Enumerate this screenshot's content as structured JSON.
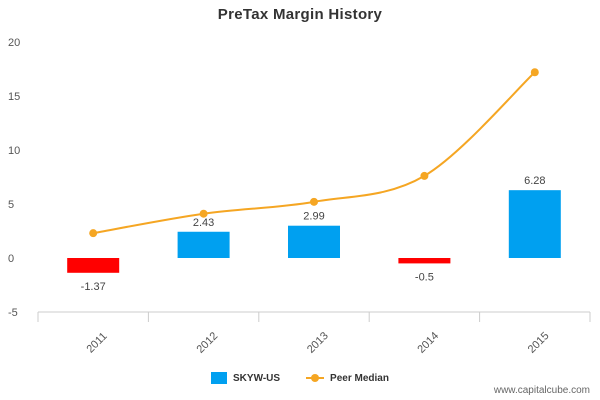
{
  "chart_data": {
    "type": "bar",
    "title": "PreTax Margin History",
    "categories": [
      "2011",
      "2012",
      "2013",
      "2014",
      "2015"
    ],
    "series": [
      {
        "name": "SKYW-US",
        "type": "bar",
        "values": [
          -1.37,
          2.43,
          2.99,
          -0.5,
          6.28
        ],
        "data_labels": [
          "-1.37",
          "2.43",
          "2.99",
          "-0.5",
          "6.28"
        ],
        "color_positive": "#00a0f0",
        "color_negative": "#ff0000"
      },
      {
        "name": "Peer Median",
        "type": "line",
        "values": [
          2.3,
          4.1,
          5.2,
          7.6,
          17.2
        ],
        "color": "#f5a623"
      }
    ],
    "xlabel": "",
    "ylabel": "",
    "ylim": [
      -5,
      20
    ],
    "yticks": [
      -5,
      0,
      5,
      10,
      15,
      20
    ],
    "grid": false,
    "legend": "bottom-center"
  },
  "legend": {
    "bar_label": "SKYW-US",
    "line_label": "Peer Median"
  },
  "watermark": "www.capitalcube.com"
}
